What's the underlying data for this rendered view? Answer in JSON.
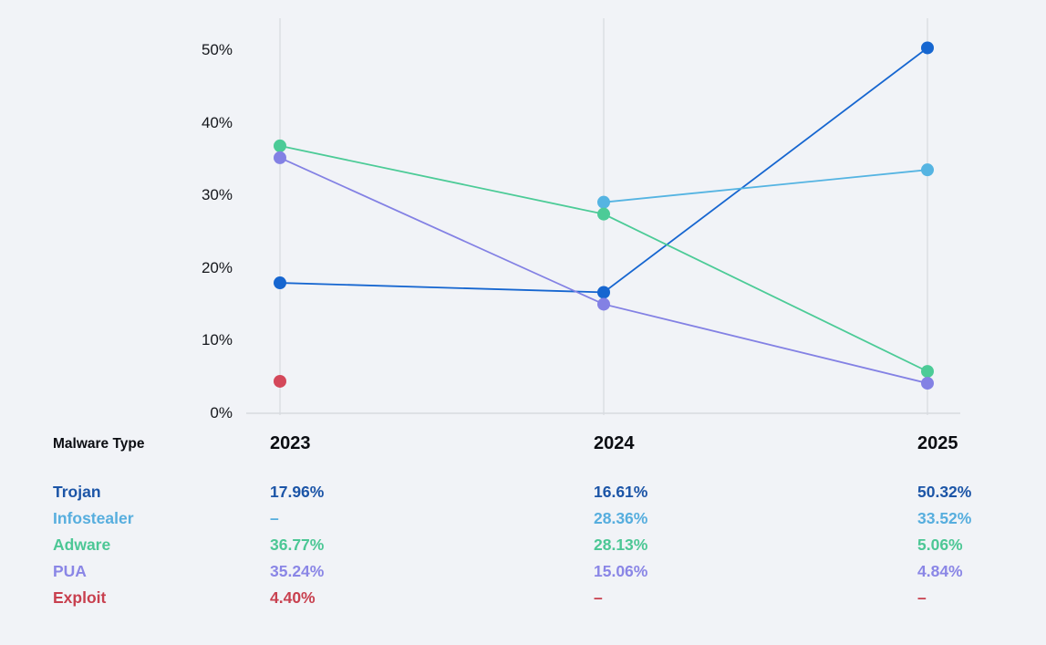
{
  "chart_data": {
    "type": "line",
    "title": "",
    "xlabel": "",
    "ylabel": "",
    "categories": [
      "2023",
      "2024",
      "2025"
    ],
    "series": [
      {
        "name": "Trojan",
        "values": [
          17.96,
          16.61,
          50.32
        ],
        "color": "#1666d0",
        "text_color": "#1c55a7"
      },
      {
        "name": "Infostealer",
        "values": [
          null,
          28.36,
          33.52
        ],
        "color": "#55b4e2",
        "text_color": "#57aede"
      },
      {
        "name": "Adware",
        "values": [
          36.77,
          28.13,
          5.06
        ],
        "color": "#4ccb97",
        "text_color": "#4cc795"
      },
      {
        "name": "PUA",
        "values": [
          35.24,
          15.06,
          4.84
        ],
        "color": "#8381e4",
        "text_color": "#8a86e6"
      },
      {
        "name": "Exploit",
        "values": [
          4.4,
          null,
          null
        ],
        "color": "#d4485a",
        "text_color": "#c8404f"
      }
    ],
    "ylim": [
      0,
      50
    ],
    "yticks": [
      0,
      10,
      20,
      30,
      40,
      50
    ],
    "ytick_labels": [
      "0%",
      "10%",
      "20%",
      "30%",
      "40%",
      "50%"
    ],
    "grid": "vertical-gridlines-per-year",
    "legend_position": "table-below-chart",
    "marker": "filled-circle"
  },
  "table": {
    "type_header": "Malware Type",
    "columns": [
      "2023",
      "2024",
      "2025"
    ],
    "rows": [
      {
        "label": "Trojan",
        "values": [
          "17.96%",
          "16.61%",
          "50.32%"
        ]
      },
      {
        "label": "Infostealer",
        "values": [
          "–",
          "28.36%",
          "33.52%"
        ]
      },
      {
        "label": "Adware",
        "values": [
          "36.77%",
          "28.13%",
          "5.06%"
        ]
      },
      {
        "label": "PUA",
        "values": [
          "35.24%",
          "15.06%",
          "4.84%"
        ]
      },
      {
        "label": "Exploit",
        "values": [
          "4.40%",
          "–",
          "–"
        ]
      }
    ]
  },
  "colors": {
    "background": "#f1f3f7",
    "gridline": "#dcdfe4",
    "axis_line": "#d8dbdf",
    "tick_text": "#15171c",
    "header_text": "#0b0d12"
  }
}
